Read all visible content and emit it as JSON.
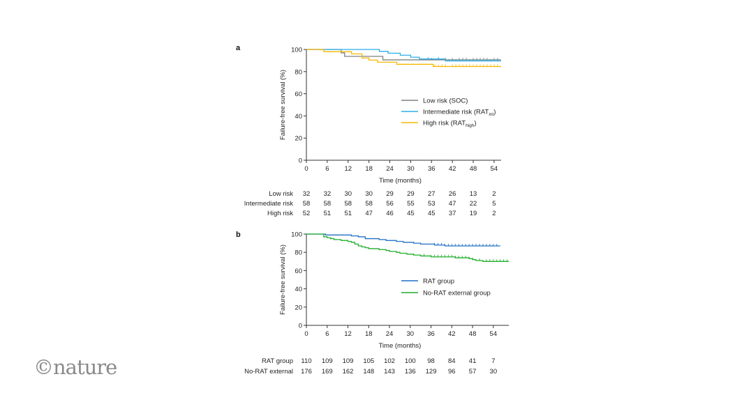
{
  "logo": "©nature",
  "chart_data": [
    {
      "panel": "a",
      "type": "line",
      "step": true,
      "xlabel": "Time (months)",
      "ylabel": "Failure-free survival (%)",
      "xlim": [
        0,
        56
      ],
      "ylim": [
        0,
        100
      ],
      "xticks": [
        0,
        6,
        12,
        18,
        24,
        30,
        36,
        42,
        48,
        54
      ],
      "yticks": [
        0,
        20,
        40,
        60,
        80,
        100
      ],
      "grid": false,
      "legend_position": "center-right",
      "series": [
        {
          "name": "Low risk (SOC)",
          "legend_main": "Low risk (SOC)",
          "legend_sub": "",
          "legend_end": "",
          "color": "#808080",
          "points": [
            [
              0,
              100
            ],
            [
              10,
              96.9
            ],
            [
              11,
              93.8
            ],
            [
              22,
              90.6
            ],
            [
              56,
              90.6
            ]
          ],
          "censored": [
            36,
            38,
            40,
            42,
            44,
            45,
            46,
            48,
            49,
            50,
            51,
            52,
            54,
            55
          ]
        },
        {
          "name": "Intermediate risk (RATint)",
          "legend_main": "Intermediate risk (RAT",
          "legend_sub": "int",
          "legend_end": ")",
          "color": "#29aee8",
          "points": [
            [
              0,
              100
            ],
            [
              21,
              98.3
            ],
            [
              23.5,
              96.6
            ],
            [
              27,
              94.8
            ],
            [
              30,
              93.0
            ],
            [
              32.5,
              91.4
            ],
            [
              40,
              89.6
            ],
            [
              56,
              89.6
            ]
          ],
          "censored": [
            35,
            38,
            41,
            42,
            43,
            44,
            45,
            46,
            47,
            48,
            49,
            50,
            51,
            52,
            53,
            54,
            55
          ]
        },
        {
          "name": "High risk (RAThigh)",
          "legend_main": "High risk (RAT",
          "legend_sub": "high",
          "legend_end": ")",
          "color": "#f5b800",
          "points": [
            [
              0,
              100
            ],
            [
              5,
              98
            ],
            [
              13,
              96
            ],
            [
              16,
              92.3
            ],
            [
              18,
              90.4
            ],
            [
              20.5,
              88.5
            ],
            [
              26,
              86.6
            ],
            [
              36.5,
              84.6
            ],
            [
              56,
              84.6
            ]
          ],
          "censored": [
            37,
            38,
            39,
            40,
            42,
            43,
            44,
            45,
            46,
            47,
            48,
            49,
            50,
            51,
            52,
            53,
            54,
            55
          ]
        }
      ],
      "risk_table": {
        "rows": [
          {
            "label": "Low risk",
            "values": [
              32,
              32,
              30,
              30,
              29,
              29,
              27,
              26,
              13,
              2
            ]
          },
          {
            "label": "Intermediate risk",
            "values": [
              58,
              58,
              58,
              58,
              56,
              55,
              53,
              47,
              22,
              5
            ]
          },
          {
            "label": "High risk",
            "values": [
              52,
              51,
              51,
              47,
              46,
              45,
              45,
              37,
              19,
              2
            ]
          }
        ]
      }
    },
    {
      "panel": "b",
      "type": "line",
      "step": true,
      "xlabel": "Time (months)",
      "ylabel": "Failure-free survival (%)",
      "xlim": [
        0,
        58.5
      ],
      "ylim": [
        0,
        100
      ],
      "xticks": [
        0,
        6,
        12,
        18,
        24,
        30,
        36,
        42,
        48,
        54
      ],
      "yticks": [
        0,
        20,
        40,
        60,
        80,
        100
      ],
      "grid": false,
      "legend_position": "center-right",
      "series": [
        {
          "name": "RAT group",
          "legend_main": "RAT group",
          "legend_sub": "",
          "legend_end": "",
          "color": "#1f6fc5",
          "points": [
            [
              0,
              100
            ],
            [
              5.5,
              99
            ],
            [
              13,
              98
            ],
            [
              15,
              97
            ],
            [
              17,
              95
            ],
            [
              21,
              94
            ],
            [
              23,
              93
            ],
            [
              26,
              92
            ],
            [
              28,
              91
            ],
            [
              31,
              90
            ],
            [
              33,
              89
            ],
            [
              37,
              88
            ],
            [
              40,
              87
            ],
            [
              56,
              87
            ]
          ],
          "censored": [
            37,
            38,
            39,
            40,
            41,
            42,
            43,
            44,
            45,
            46,
            47,
            48,
            49,
            50,
            51,
            52,
            53,
            54,
            55
          ]
        },
        {
          "name": "No-RAT external group",
          "legend_main": "No-RAT external group",
          "legend_sub": "",
          "legend_end": "",
          "color": "#1fae2a",
          "points": [
            [
              0,
              100
            ],
            [
              5,
              97
            ],
            [
              6,
              96
            ],
            [
              7,
              95
            ],
            [
              8,
              94
            ],
            [
              10,
              93
            ],
            [
              12,
              92
            ],
            [
              13,
              91
            ],
            [
              14,
              89
            ],
            [
              15,
              87
            ],
            [
              16,
              86
            ],
            [
              17,
              85
            ],
            [
              18,
              84
            ],
            [
              21,
              83
            ],
            [
              23,
              82
            ],
            [
              24,
              81
            ],
            [
              26,
              80
            ],
            [
              27,
              79
            ],
            [
              29,
              78
            ],
            [
              31,
              77
            ],
            [
              33,
              76
            ],
            [
              36,
              75
            ],
            [
              43,
              74
            ],
            [
              47,
              73
            ],
            [
              48,
              72
            ],
            [
              49,
              71
            ],
            [
              51,
              70
            ],
            [
              58.5,
              70
            ]
          ],
          "censored": [
            34,
            36,
            37,
            38,
            39,
            40,
            41,
            42,
            43,
            44,
            45,
            46,
            47,
            48,
            50,
            52,
            53,
            54,
            55,
            56,
            57,
            58
          ]
        }
      ],
      "risk_table": {
        "rows": [
          {
            "label": "RAT group",
            "values": [
              110,
              109,
              109,
              105,
              102,
              100,
              98,
              84,
              41,
              7
            ]
          },
          {
            "label": "No-RAT external",
            "values": [
              176,
              169,
              162,
              148,
              143,
              136,
              129,
              96,
              57,
              30
            ]
          }
        ]
      }
    }
  ]
}
